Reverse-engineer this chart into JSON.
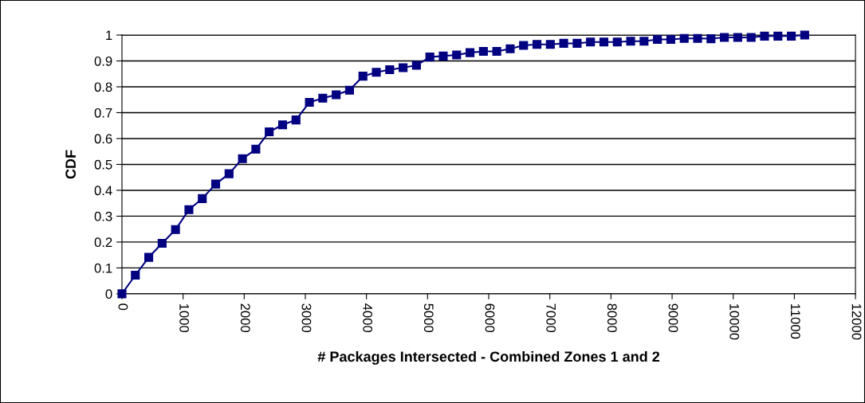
{
  "chart_data": {
    "type": "line",
    "xlabel": "# Packages Intersected - Combined Zones 1 and 2",
    "ylabel": "CDF",
    "x": [
      0,
      219,
      438,
      657,
      876,
      1095,
      1314,
      1533,
      1752,
      1971,
      2190,
      2409,
      2628,
      2847,
      3066,
      3285,
      3504,
      3723,
      3942,
      4161,
      4380,
      4599,
      4818,
      5037,
      5256,
      5475,
      5694,
      5913,
      6132,
      6351,
      6570,
      6789,
      7008,
      7227,
      7446,
      7665,
      7884,
      8103,
      8322,
      8541,
      8760,
      8979,
      9198,
      9417,
      9636,
      9855,
      10074,
      10293,
      10512,
      10731,
      10950,
      11169
    ],
    "series": [
      {
        "color": "#000080",
        "values": [
          0,
          0.072,
          0.141,
          0.195,
          0.248,
          0.325,
          0.368,
          0.424,
          0.464,
          0.522,
          0.559,
          0.626,
          0.653,
          0.672,
          0.74,
          0.756,
          0.769,
          0.787,
          0.841,
          0.856,
          0.866,
          0.874,
          0.883,
          0.915,
          0.919,
          0.923,
          0.932,
          0.937,
          0.937,
          0.947,
          0.96,
          0.964,
          0.964,
          0.968,
          0.968,
          0.973,
          0.973,
          0.973,
          0.976,
          0.976,
          0.983,
          0.983,
          0.987,
          0.987,
          0.986,
          0.991,
          0.991,
          0.991,
          0.996,
          0.996,
          0.996,
          1.0
        ]
      }
    ],
    "xlim": [
      0,
      12000
    ],
    "xticks": [
      0,
      1000,
      2000,
      3000,
      4000,
      5000,
      6000,
      7000,
      8000,
      9000,
      10000,
      11000,
      12000
    ],
    "ylim": [
      0,
      1
    ],
    "yticks": [
      0,
      0.1,
      0.2,
      0.3,
      0.4,
      0.5,
      0.6,
      0.7,
      0.8,
      0.9,
      1
    ],
    "grid": "y",
    "legend": false,
    "marker": "square",
    "line_style": "solid"
  }
}
